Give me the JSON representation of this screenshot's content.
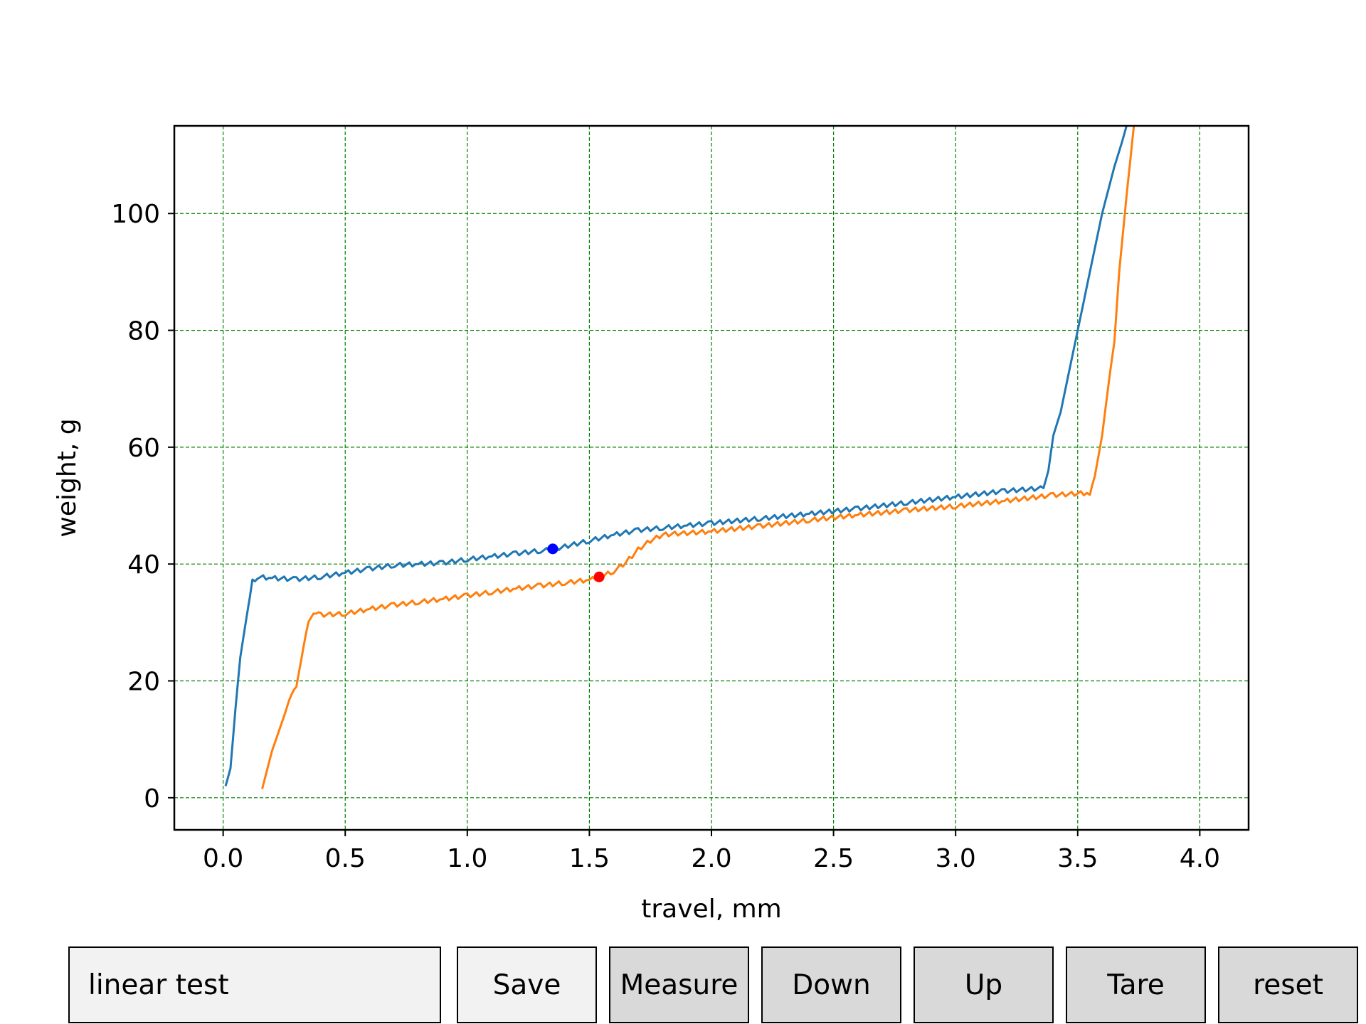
{
  "chart_data": {
    "type": "line",
    "xlabel": "travel, mm",
    "ylabel": "weight, g",
    "xlim": [
      -0.2,
      4.2
    ],
    "ylim": [
      -5.5,
      115
    ],
    "xticks": [
      0.0,
      0.5,
      1.0,
      1.5,
      2.0,
      2.5,
      3.0,
      3.5,
      4.0
    ],
    "xtick_labels": [
      "0.0",
      "0.5",
      "1.0",
      "1.5",
      "2.0",
      "2.5",
      "3.0",
      "3.5",
      "4.0"
    ],
    "yticks": [
      0,
      20,
      40,
      60,
      80,
      100
    ],
    "ytick_labels": [
      "0",
      "20",
      "40",
      "60",
      "80",
      "100"
    ],
    "grid": true,
    "grid_color": "#008000",
    "series": [
      {
        "color": "#1f77b4",
        "points": [
          [
            0.01,
            2
          ],
          [
            0.03,
            5
          ],
          [
            0.05,
            15
          ],
          [
            0.07,
            24
          ],
          [
            0.1,
            32
          ],
          [
            0.12,
            37
          ],
          [
            0.14,
            37.8
          ],
          [
            0.2,
            37.6
          ],
          [
            0.3,
            37.4
          ],
          [
            0.4,
            37.8
          ],
          [
            0.5,
            38.5
          ],
          [
            0.6,
            39.2
          ],
          [
            0.7,
            39.8
          ],
          [
            0.8,
            40.0
          ],
          [
            0.9,
            40.2
          ],
          [
            1.0,
            40.8
          ],
          [
            1.1,
            41.3
          ],
          [
            1.2,
            41.8
          ],
          [
            1.3,
            42.3
          ],
          [
            1.35,
            42.5
          ],
          [
            1.4,
            43.0
          ],
          [
            1.5,
            44.0
          ],
          [
            1.6,
            45.0
          ],
          [
            1.7,
            45.8
          ],
          [
            1.8,
            46.2
          ],
          [
            1.9,
            46.6
          ],
          [
            2.0,
            47.0
          ],
          [
            2.2,
            47.8
          ],
          [
            2.4,
            48.6
          ],
          [
            2.6,
            49.5
          ],
          [
            2.8,
            50.5
          ],
          [
            3.0,
            51.5
          ],
          [
            3.2,
            52.5
          ],
          [
            3.36,
            53.0
          ],
          [
            3.38,
            56
          ],
          [
            3.4,
            62
          ],
          [
            3.43,
            66
          ],
          [
            3.46,
            72
          ],
          [
            3.5,
            80
          ],
          [
            3.55,
            90
          ],
          [
            3.6,
            100
          ],
          [
            3.65,
            108
          ],
          [
            3.68,
            112
          ],
          [
            3.7,
            115
          ]
        ]
      },
      {
        "color": "#ff7f0e",
        "points": [
          [
            0.16,
            1.5
          ],
          [
            0.2,
            8
          ],
          [
            0.25,
            14
          ],
          [
            0.28,
            18
          ],
          [
            0.3,
            19
          ],
          [
            0.33,
            26
          ],
          [
            0.35,
            30.5
          ],
          [
            0.38,
            31.5
          ],
          [
            0.4,
            31.3
          ],
          [
            0.5,
            31.5
          ],
          [
            0.6,
            32.3
          ],
          [
            0.7,
            33.0
          ],
          [
            0.8,
            33.5
          ],
          [
            0.9,
            34.0
          ],
          [
            1.0,
            34.6
          ],
          [
            1.1,
            35.2
          ],
          [
            1.2,
            35.8
          ],
          [
            1.3,
            36.3
          ],
          [
            1.4,
            36.8
          ],
          [
            1.5,
            37.3
          ],
          [
            1.54,
            37.7
          ],
          [
            1.6,
            38.8
          ],
          [
            1.65,
            40.3
          ],
          [
            1.7,
            42.5
          ],
          [
            1.75,
            44.0
          ],
          [
            1.8,
            45.0
          ],
          [
            1.85,
            45.2
          ],
          [
            1.9,
            45.3
          ],
          [
            2.0,
            45.6
          ],
          [
            2.2,
            46.5
          ],
          [
            2.4,
            47.5
          ],
          [
            2.6,
            48.4
          ],
          [
            2.8,
            49.2
          ],
          [
            3.0,
            49.9
          ],
          [
            3.2,
            50.8
          ],
          [
            3.4,
            51.8
          ],
          [
            3.55,
            52.2
          ],
          [
            3.57,
            55
          ],
          [
            3.6,
            62
          ],
          [
            3.63,
            72
          ],
          [
            3.65,
            78
          ],
          [
            3.67,
            90
          ],
          [
            3.7,
            103
          ],
          [
            3.73,
            115
          ]
        ]
      }
    ],
    "markers": [
      {
        "x": 1.35,
        "y": 42.6,
        "color": "#0000ff"
      },
      {
        "x": 1.54,
        "y": 37.8,
        "color": "#ff0000"
      }
    ]
  },
  "controls": {
    "textbox_value": "linear test",
    "buttons": {
      "save": "Save",
      "measure": "Measure",
      "down": "Down",
      "up": "Up",
      "tare": "Tare",
      "reset": "reset"
    }
  }
}
